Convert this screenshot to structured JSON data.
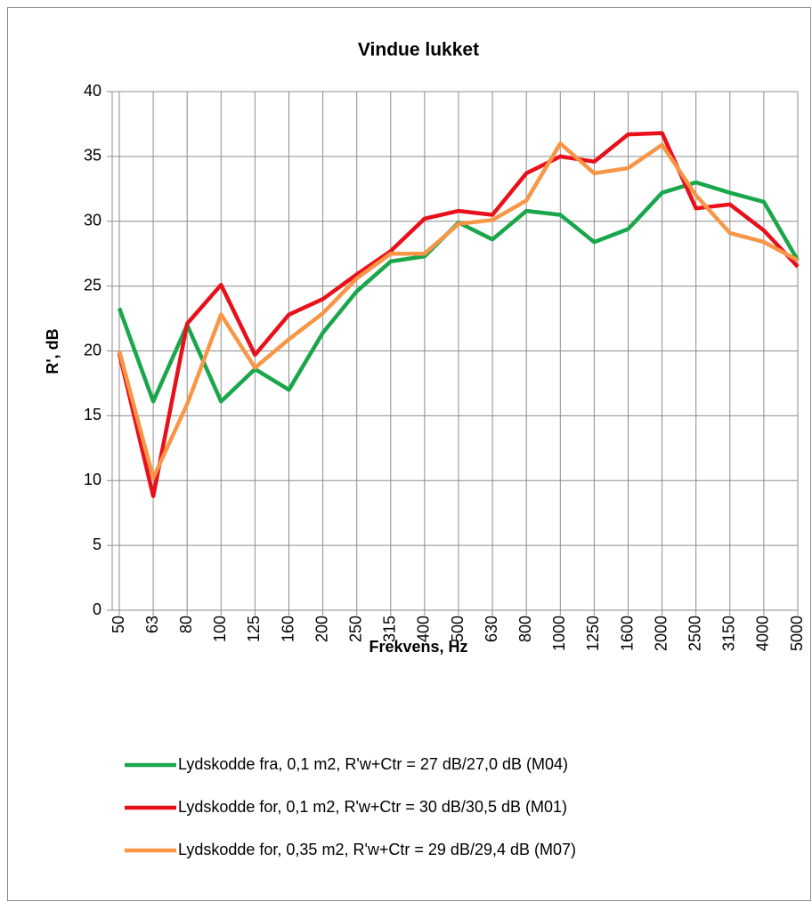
{
  "chart_data": {
    "type": "line",
    "title": "Vindue lukket",
    "x_label": "Frekvens, Hz",
    "y_label": "R', dB",
    "categories": [
      "50",
      "63",
      "80",
      "100",
      "125",
      "160",
      "200",
      "250",
      "315",
      "400",
      "500",
      "630",
      "800",
      "1000",
      "1250",
      "1600",
      "2000",
      "2500",
      "3150",
      "4000",
      "5000"
    ],
    "series": [
      {
        "name": "Lydskodde fra, 0,1 m2, R'w+Ctr = 27 dB/27,0 dB (M04)",
        "color": "#1aa64b",
        "values": [
          23.3,
          16.1,
          22.0,
          16.1,
          18.6,
          17.0,
          21.4,
          24.6,
          26.9,
          27.3,
          29.9,
          28.6,
          30.8,
          30.5,
          28.4,
          29.4,
          32.2,
          33.0,
          32.2,
          31.5,
          27.0
        ]
      },
      {
        "name": "Lydskodde for, 0,1 m2, R'w+Ctr = 30 dB/30,5 dB (M01)",
        "color": "#e8101b",
        "values": [
          19.8,
          8.8,
          22.1,
          25.1,
          19.7,
          22.8,
          24.0,
          25.9,
          27.7,
          30.2,
          30.8,
          30.5,
          33.7,
          35.0,
          34.6,
          36.7,
          36.8,
          31.0,
          31.3,
          29.3,
          26.5
        ]
      },
      {
        "name": "Lydskodde for, 0,35 m2, R'w+Ctr = 29 dB/29,4 dB (M07)",
        "color": "#f79646",
        "values": [
          20.0,
          10.2,
          15.9,
          22.8,
          18.7,
          20.9,
          22.9,
          25.6,
          27.5,
          27.5,
          29.8,
          30.1,
          31.6,
          36.0,
          33.7,
          34.1,
          35.9,
          32.0,
          29.1,
          28.4,
          27.0
        ]
      }
    ],
    "ylim": [
      0,
      40
    ],
    "yticks": [
      0,
      5,
      10,
      15,
      20,
      25,
      30,
      35,
      40
    ],
    "grid": true
  }
}
